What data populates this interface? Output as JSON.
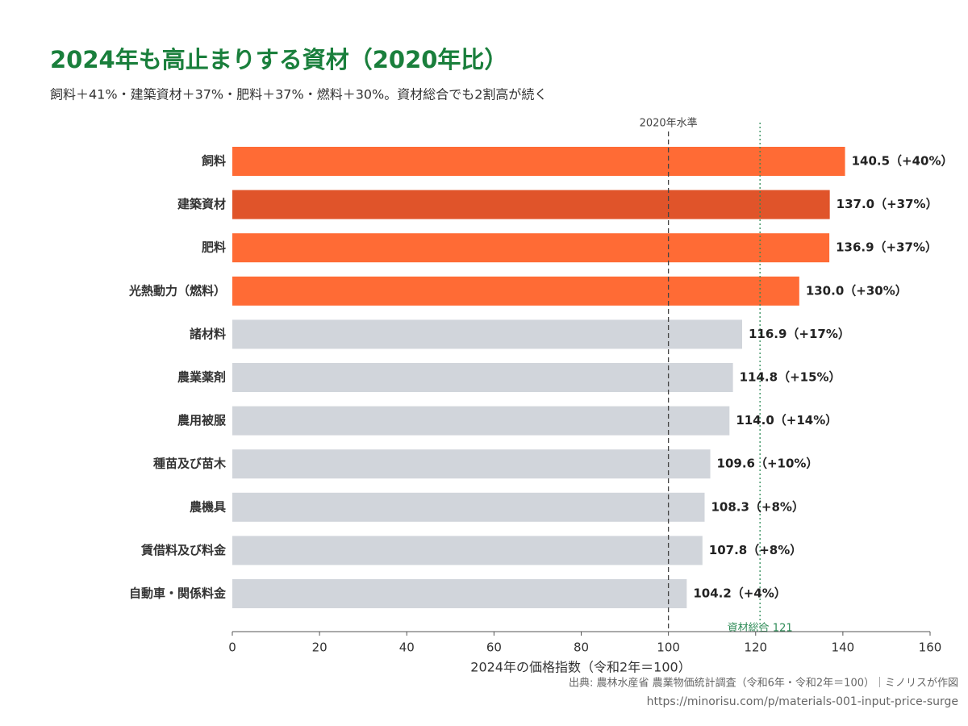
{
  "chart_data": {
    "type": "barh",
    "title": "2024年も高止まりする資材（2020年比）",
    "subtitle": "飼料＋41%・建築資材＋37%・肥料＋37%・燃料＋30%。資材総合でも2割高が続く",
    "xlabel": "2024年の価格指数（令和2年＝100）",
    "source": "出典: 農林水産省 農業物価統計調査（令和6年・令和2年＝100）｜ミノリスが作図",
    "url": "https://minorisu.com/p/materials-001-input-price-surge",
    "categories": [
      "飼料",
      "建築資材",
      "肥料",
      "光熱動力（燃料）",
      "諸材料",
      "農業薬剤",
      "農用被服",
      "種苗及び苗木",
      "農機具",
      "賃借料及び料金",
      "自動車・関係料金"
    ],
    "values": [
      140.5,
      137.0,
      136.9,
      130.0,
      116.9,
      114.8,
      114.0,
      109.6,
      108.3,
      107.8,
      104.2
    ],
    "value_labels": [
      "140.5（+40%）",
      "137.0（+37%）",
      "136.9（+37%）",
      "130.0（+30%）",
      "116.9（+17%）",
      "114.8（+15%）",
      "114.0（+14%）",
      "109.6（+10%）",
      "108.3（+8%）",
      "107.8（+8%）",
      "104.2（+4%）"
    ],
    "colors": [
      "#ff6b35",
      "#e0542a",
      "#ff6b35",
      "#ff6b35",
      "#d1d5db",
      "#d1d5db",
      "#d1d5db",
      "#d1d5db",
      "#d1d5db",
      "#d1d5db",
      "#d1d5db"
    ],
    "xlim": [
      0,
      160
    ],
    "xticks": [
      0,
      20,
      40,
      60,
      80,
      100,
      120,
      140,
      160
    ],
    "reference_lines": [
      {
        "value": 100,
        "label": "2020年水準",
        "color": "#444444",
        "style": "dashed"
      },
      {
        "value": 121,
        "label": "資材総合 121",
        "color": "#2e8b57",
        "style": "dotted"
      }
    ]
  }
}
